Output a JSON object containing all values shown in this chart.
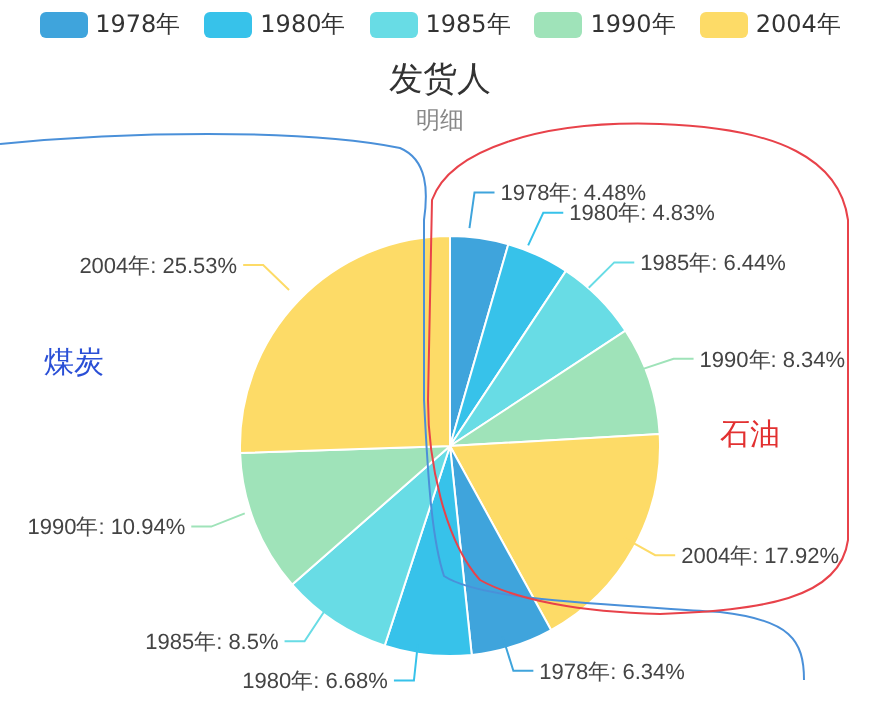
{
  "chart_data": {
    "type": "pie",
    "title": "发货人",
    "subtitle": "明细",
    "categories": [
      "1978年",
      "1980年",
      "1985年",
      "1990年",
      "2004年",
      "1978年",
      "1980年",
      "1985年",
      "1990年",
      "2004年"
    ],
    "values": [
      4.48,
      4.83,
      6.44,
      8.34,
      17.92,
      6.34,
      6.68,
      8.5,
      10.94,
      25.53
    ],
    "colors": [
      "#3fa4dc",
      "#37c2ea",
      "#68dce5",
      "#9fe3b9",
      "#fddb67",
      "#3fa4dc",
      "#37c2ea",
      "#68dce5",
      "#9fe3b9",
      "#fddb67"
    ],
    "value_labels": [
      ": 4.48%",
      ": 4.83%",
      ": 6.44%",
      ": 8.34%",
      ": 17.92%",
      ": 6.34%",
      ": 6.68%",
      ": 8.5%",
      ": 10.94%",
      ": 25.53%"
    ],
    "legend": "top",
    "annotations": [
      "煤炭",
      "石油"
    ]
  }
}
